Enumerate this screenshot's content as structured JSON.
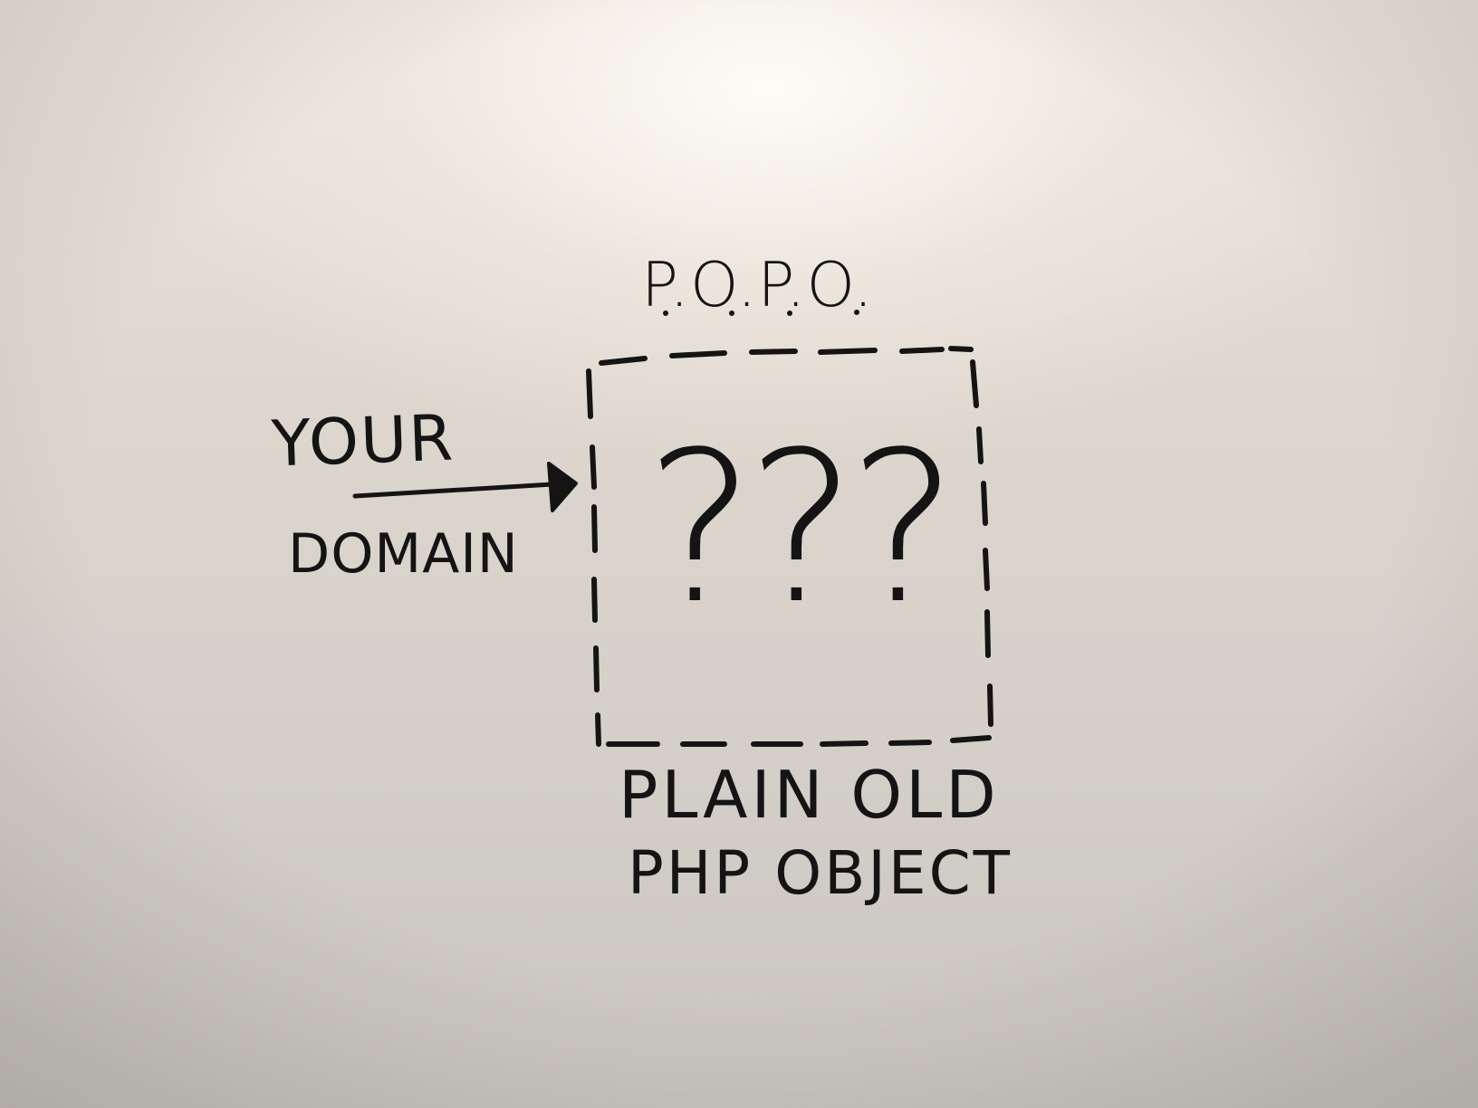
{
  "whiteboard": {
    "heading": "P.O.P.O.",
    "arrow_label_top": "YOUR",
    "arrow_label_bottom": "DOMAIN",
    "box_content": "???",
    "caption_line1": "PLAIN OLD",
    "caption_line2": "PHP OBJECT"
  },
  "colors": {
    "ink": "#141414",
    "board": "#ddd7ce"
  }
}
